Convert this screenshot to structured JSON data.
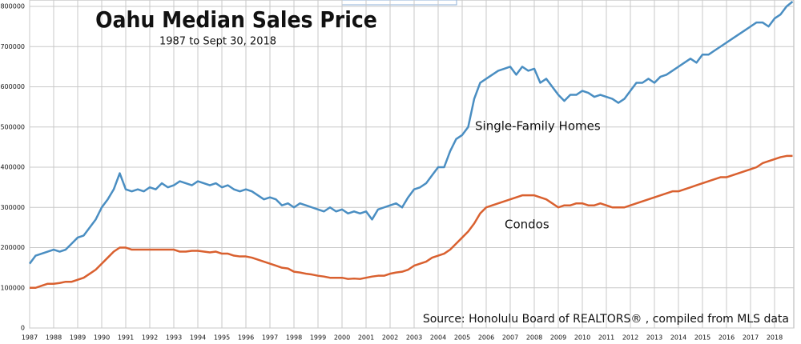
{
  "chart_data": {
    "type": "line",
    "title": "Oahu Median Sales Price",
    "subtitle": "1987 to Sept 30, 2018",
    "source": "Source: Honolulu Board of REALTORS® , compiled from MLS data",
    "x": [
      1987,
      1987.25,
      1987.5,
      1987.75,
      1988,
      1988.25,
      1988.5,
      1988.75,
      1989,
      1989.25,
      1989.5,
      1989.75,
      1990,
      1990.25,
      1990.5,
      1990.75,
      1991,
      1991.25,
      1991.5,
      1991.75,
      1992,
      1992.25,
      1992.5,
      1992.75,
      1993,
      1993.25,
      1993.5,
      1993.75,
      1994,
      1994.25,
      1994.5,
      1994.75,
      1995,
      1995.25,
      1995.5,
      1995.75,
      1996,
      1996.25,
      1996.5,
      1996.75,
      1997,
      1997.25,
      1997.5,
      1997.75,
      1998,
      1998.25,
      1998.5,
      1998.75,
      1999,
      1999.25,
      1999.5,
      1999.75,
      2000,
      2000.25,
      2000.5,
      2000.75,
      2001,
      2001.25,
      2001.5,
      2001.75,
      2002,
      2002.25,
      2002.5,
      2002.75,
      2003,
      2003.25,
      2003.5,
      2003.75,
      2004,
      2004.25,
      2004.5,
      2004.75,
      2005,
      2005.25,
      2005.5,
      2005.75,
      2006,
      2006.25,
      2006.5,
      2006.75,
      2007,
      2007.25,
      2007.5,
      2007.75,
      2008,
      2008.25,
      2008.5,
      2008.75,
      2009,
      2009.25,
      2009.5,
      2009.75,
      2010,
      2010.25,
      2010.5,
      2010.75,
      2011,
      2011.25,
      2011.5,
      2011.75,
      2012,
      2012.25,
      2012.5,
      2012.75,
      2013,
      2013.25,
      2013.5,
      2013.75,
      2014,
      2014.25,
      2014.5,
      2014.75,
      2015,
      2015.25,
      2015.5,
      2015.75,
      2016,
      2016.25,
      2016.5,
      2016.75,
      2017,
      2017.25,
      2017.5,
      2017.75,
      2018,
      2018.25,
      2018.5,
      2018.75
    ],
    "series": [
      {
        "name": "Single-Family Homes",
        "color": "#4a8ec2",
        "values": [
          160000,
          180000,
          185000,
          190000,
          195000,
          190000,
          195000,
          210000,
          225000,
          230000,
          250000,
          270000,
          300000,
          320000,
          345000,
          385000,
          345000,
          340000,
          345000,
          340000,
          350000,
          345000,
          360000,
          350000,
          355000,
          365000,
          360000,
          355000,
          365000,
          360000,
          355000,
          360000,
          350000,
          355000,
          345000,
          340000,
          345000,
          340000,
          330000,
          320000,
          325000,
          320000,
          305000,
          310000,
          300000,
          310000,
          305000,
          300000,
          295000,
          290000,
          300000,
          290000,
          295000,
          285000,
          290000,
          285000,
          290000,
          270000,
          295000,
          300000,
          305000,
          310000,
          300000,
          325000,
          345000,
          350000,
          360000,
          380000,
          400000,
          400000,
          440000,
          470000,
          480000,
          500000,
          570000,
          610000,
          620000,
          630000,
          640000,
          645000,
          650000,
          630000,
          650000,
          640000,
          645000,
          610000,
          620000,
          600000,
          580000,
          565000,
          580000,
          580000,
          590000,
          585000,
          575000,
          580000,
          575000,
          570000,
          560000,
          570000,
          590000,
          610000,
          610000,
          620000,
          610000,
          625000,
          630000,
          640000,
          650000,
          660000,
          670000,
          660000,
          680000,
          680000,
          690000,
          700000,
          710000,
          720000,
          730000,
          740000,
          750000,
          760000,
          760000,
          750000,
          770000,
          780000,
          800000,
          812000
        ]
      },
      {
        "name": "Condos",
        "color": "#d9602f",
        "values": [
          100000,
          100000,
          105000,
          110000,
          110000,
          112000,
          115000,
          115000,
          120000,
          125000,
          135000,
          145000,
          160000,
          175000,
          190000,
          200000,
          200000,
          195000,
          195000,
          195000,
          195000,
          195000,
          195000,
          195000,
          195000,
          190000,
          190000,
          192000,
          192000,
          190000,
          188000,
          190000,
          185000,
          185000,
          180000,
          178000,
          178000,
          175000,
          170000,
          165000,
          160000,
          155000,
          150000,
          148000,
          140000,
          138000,
          135000,
          133000,
          130000,
          128000,
          125000,
          125000,
          125000,
          122000,
          123000,
          122000,
          125000,
          128000,
          130000,
          130000,
          135000,
          138000,
          140000,
          145000,
          155000,
          160000,
          165000,
          175000,
          180000,
          185000,
          195000,
          210000,
          225000,
          240000,
          260000,
          285000,
          300000,
          305000,
          310000,
          315000,
          320000,
          325000,
          330000,
          330000,
          330000,
          325000,
          320000,
          310000,
          300000,
          305000,
          305000,
          310000,
          310000,
          305000,
          305000,
          310000,
          305000,
          300000,
          300000,
          300000,
          305000,
          310000,
          315000,
          320000,
          325000,
          330000,
          335000,
          340000,
          340000,
          345000,
          350000,
          355000,
          360000,
          365000,
          370000,
          375000,
          375000,
          380000,
          385000,
          390000,
          395000,
          400000,
          410000,
          415000,
          420000,
          425000,
          428000,
          428000
        ]
      }
    ],
    "xlim": [
      1987,
      2018.8
    ],
    "xticks": [
      1987,
      1988,
      1989,
      1990,
      1991,
      1992,
      1993,
      1994,
      1995,
      1996,
      1997,
      1998,
      1999,
      2000,
      2001,
      2002,
      2003,
      2004,
      2005,
      2006,
      2007,
      2008,
      2009,
      2010,
      2011,
      2012,
      2013,
      2014,
      2015,
      2016,
      2017,
      2018
    ],
    "ylim": [
      0,
      800000
    ],
    "yticks": [
      0,
      100000,
      200000,
      300000,
      400000,
      500000,
      600000,
      700000,
      800000
    ],
    "grid": true
  }
}
